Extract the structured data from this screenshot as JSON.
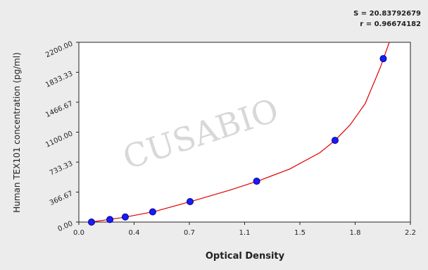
{
  "chart_data": {
    "type": "scatter",
    "x_label": "Optical Density",
    "y_label": "Human TEX101 concentration (pg/ml)",
    "annotations": [
      "S = 20.83792679",
      "r = 0.96674182"
    ],
    "watermark": "CUSABIO",
    "series": [
      {
        "color": "#1a1aff",
        "x": [
          0.084,
          0.206,
          0.308,
          0.49,
          0.738,
          1.18,
          1.7,
          2.02
        ],
        "values": [
          0,
          31.25,
          62.5,
          125,
          250,
          500,
          1000,
          2000
        ]
      }
    ],
    "curve": {
      "color": "#e00000",
      "x": [
        0.1,
        0.3,
        0.5,
        0.75,
        1.0,
        1.2,
        1.4,
        1.6,
        1.7,
        1.8,
        1.9,
        2.0,
        2.06
      ],
      "values": [
        5,
        58,
        128,
        255,
        390,
        510,
        650,
        850,
        1000,
        1190,
        1450,
        1890,
        2200
      ]
    },
    "xlim": [
      0,
      2.2
    ],
    "xticks": [
      {
        "value": 0,
        "label": "0.0"
      },
      {
        "value": 0.3667,
        "label": "0.4"
      },
      {
        "value": 0.7333,
        "label": "0.7"
      },
      {
        "value": 1.1,
        "label": "1.1"
      },
      {
        "value": 1.4667,
        "label": "1.5"
      },
      {
        "value": 1.8333,
        "label": "1.8"
      },
      {
        "value": 2.2,
        "label": "2.2"
      }
    ],
    "ylim": [
      0,
      2200
    ],
    "yticks": [
      {
        "value": 0,
        "label": "0.00"
      },
      366.67,
      733.33,
      {
        "value": 1100,
        "label": "1100.00"
      },
      1466.67,
      1833.33,
      {
        "value": 2200,
        "label": "2200.00"
      }
    ]
  }
}
